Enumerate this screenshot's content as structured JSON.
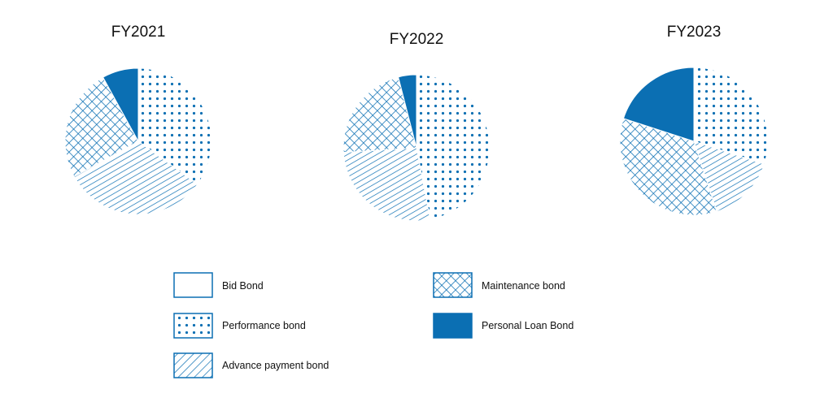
{
  "colors": {
    "accent": "#0b6fb3",
    "background": "#ffffff"
  },
  "legend": [
    {
      "label": "Bid Bond",
      "pattern": "none"
    },
    {
      "label": "Performance bond",
      "pattern": "dots"
    },
    {
      "label": "Advance payment bond",
      "pattern": "diagonal"
    },
    {
      "label": "Maintenance bond",
      "pattern": "crosshatch"
    },
    {
      "label": "Personal Loan Bond",
      "pattern": "solid"
    }
  ],
  "chart_data": [
    {
      "type": "pie",
      "title": "FY2021",
      "categories": [
        "Bid Bond",
        "Performance bond",
        "Advance payment bond",
        "Maintenance bond",
        "Personal Loan Bond"
      ],
      "values": [
        0,
        35,
        32,
        25,
        8
      ]
    },
    {
      "type": "pie",
      "title": "FY2022",
      "categories": [
        "Bid Bond",
        "Performance bond",
        "Advance payment bond",
        "Maintenance bond",
        "Personal Loan Bond"
      ],
      "values": [
        0,
        47,
        27,
        22,
        4
      ]
    },
    {
      "type": "pie",
      "title": "FY2023",
      "categories": [
        "Bid Bond",
        "Performance bond",
        "Advance payment bond",
        "Maintenance bond",
        "Personal Loan Bond"
      ],
      "values": [
        0,
        30,
        15,
        35,
        20
      ]
    }
  ]
}
